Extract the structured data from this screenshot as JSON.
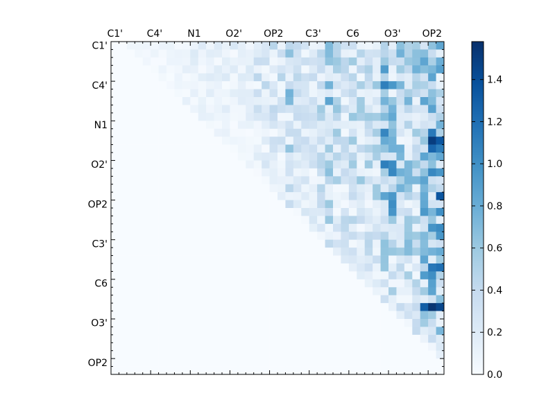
{
  "chart_data": {
    "type": "heatmap",
    "title": "",
    "xlabel": "",
    "ylabel": "",
    "n_rows": 42,
    "n_cols": 42,
    "layout": "upper-triangle",
    "tick_labels": [
      "C1'",
      "C4'",
      "N1",
      "O2'",
      "OP2",
      "C3'",
      "C6",
      "O3'",
      "OP2"
    ],
    "x_tick_labels": [
      "C1'",
      "C4'",
      "N1",
      "O2'",
      "OP2",
      "C3'",
      "C6",
      "O3'",
      "OP2"
    ],
    "y_tick_labels": [
      "C1'",
      "C4'",
      "N1",
      "O2'",
      "OP2",
      "C3'",
      "C6",
      "O3'",
      "OP2"
    ],
    "colorbar": {
      "min": 0.0,
      "max": 1.58,
      "ticks": [
        0.0,
        0.2,
        0.4,
        0.6,
        0.8,
        1.0,
        1.2,
        1.4
      ],
      "tick_labels": [
        "0.0",
        "0.2",
        "0.4",
        "0.6",
        "0.8",
        "1.0",
        "1.2",
        "1.4"
      ],
      "colormap": "Blues"
    },
    "notable_values": [
      {
        "row": 12,
        "col": 41,
        "value": 1.35
      },
      {
        "row": 12,
        "col": 40,
        "value": 1.5
      },
      {
        "row": 13,
        "col": 40,
        "value": 1.25
      },
      {
        "row": 19,
        "col": 41,
        "value": 1.35
      },
      {
        "row": 33,
        "col": 40,
        "value": 1.55
      },
      {
        "row": 33,
        "col": 39,
        "value": 1.3
      },
      {
        "row": 33,
        "col": 41,
        "value": 1.45
      },
      {
        "row": 28,
        "col": 41,
        "value": 1.2
      },
      {
        "row": 28,
        "col": 40,
        "value": 1.15
      },
      {
        "row": 5,
        "col": 34,
        "value": 1.1
      },
      {
        "row": 15,
        "col": 34,
        "value": 1.1
      }
    ],
    "grid": false,
    "legend": "none"
  }
}
